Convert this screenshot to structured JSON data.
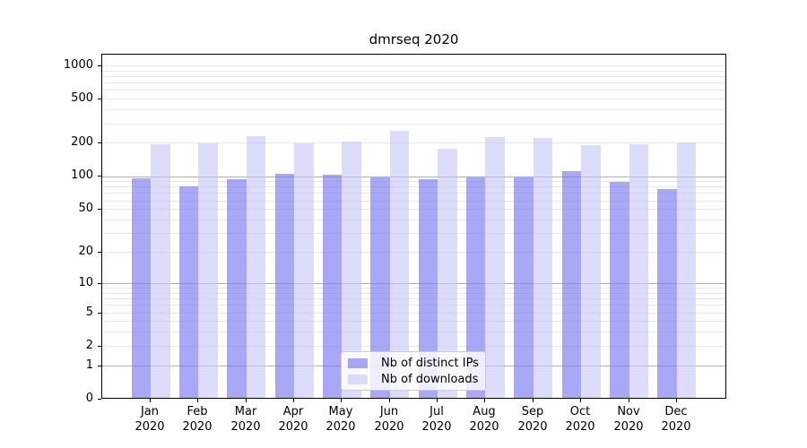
{
  "chart_data": {
    "type": "bar",
    "title": "dmrseq 2020",
    "categories": [
      "Jan 2020",
      "Feb 2020",
      "Mar 2020",
      "Apr 2020",
      "May 2020",
      "Jun 2020",
      "Jul 2020",
      "Aug 2020",
      "Sep 2020",
      "Oct 2020",
      "Nov 2020",
      "Dec 2020"
    ],
    "series": [
      {
        "name": "Nb of distinct IPs",
        "color": "rgba(115,115,240,0.62)",
        "values": [
          94,
          79,
          92,
          103,
          101,
          95,
          92,
          95,
          96,
          109,
          87,
          75
        ]
      },
      {
        "name": "Nb of downloads",
        "color": "rgba(193,193,248,0.55)",
        "values": [
          190,
          193,
          226,
          193,
          201,
          252,
          175,
          221,
          218,
          187,
          190,
          198
        ]
      }
    ],
    "xlabel": "",
    "ylabel": "",
    "y_axis": {
      "scale": "log10(1+value)",
      "tick_labels": [
        "0",
        "1",
        "2",
        "5",
        "10",
        "20",
        "50",
        "100",
        "200",
        "500",
        "1000"
      ],
      "ticks": [
        0,
        1,
        2,
        5,
        10,
        20,
        50,
        100,
        200,
        500,
        1000
      ],
      "major_gridlines": [
        1,
        10,
        100
      ],
      "minor_gridlines": [
        2,
        3,
        4,
        5,
        6,
        7,
        8,
        9,
        20,
        30,
        40,
        50,
        60,
        70,
        80,
        90,
        200,
        300,
        400,
        500,
        600,
        700,
        800,
        900,
        1000
      ],
      "ylim": [
        0,
        1270
      ]
    },
    "legend": {
      "position": "lower center",
      "entries": [
        "Nb of distinct IPs",
        "Nb of downloads"
      ]
    },
    "colors": {
      "major_grid": "#b3b3b3",
      "minor_grid": "#e7e7e7",
      "spine": "#000000",
      "text": "#000000",
      "legend_border": "#cccccc"
    }
  }
}
